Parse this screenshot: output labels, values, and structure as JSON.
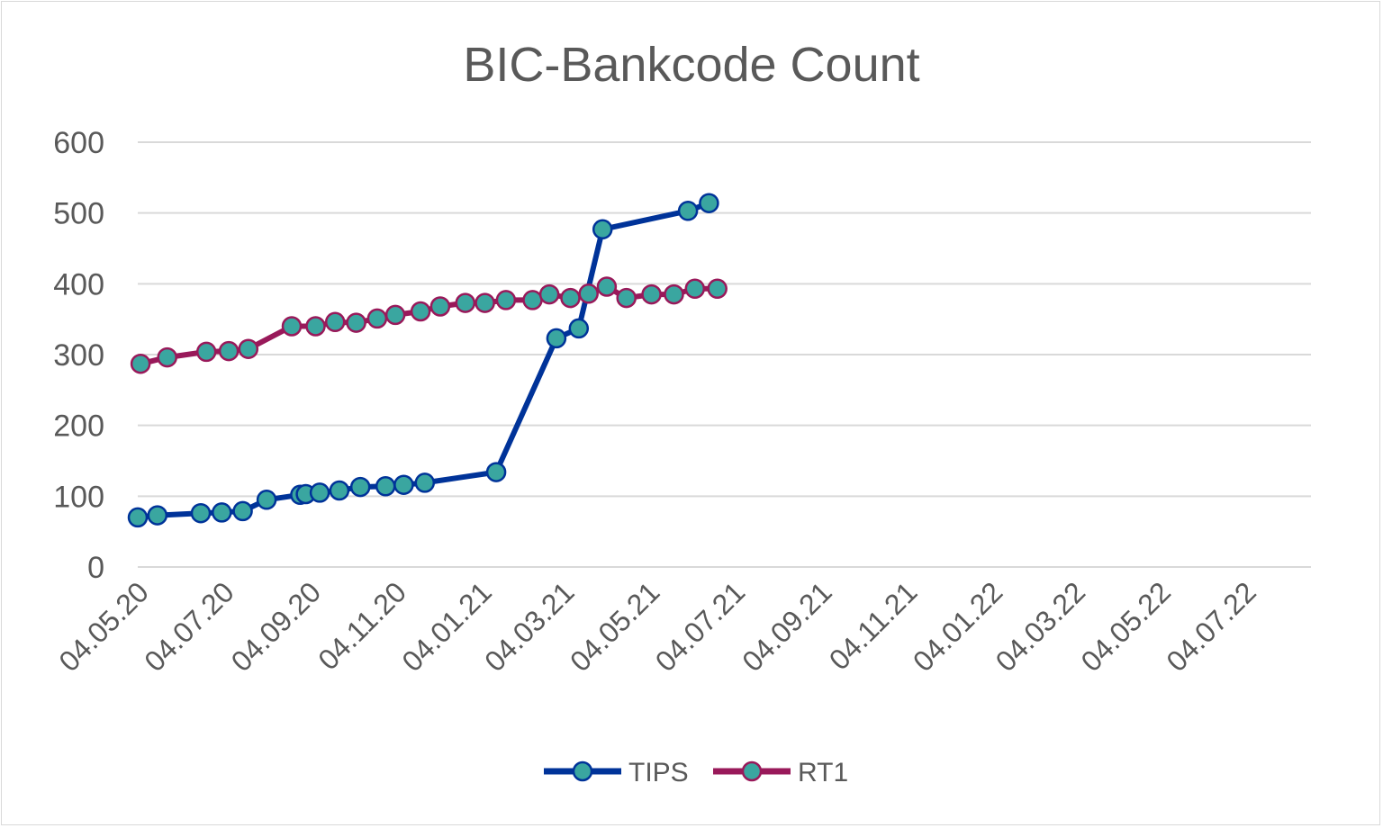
{
  "chart_data": {
    "type": "line",
    "title": "BIC-Bankcode Count",
    "xlabel": "",
    "ylabel": "",
    "ylim": [
      0,
      600
    ],
    "yticks": [
      0,
      100,
      200,
      300,
      400,
      500,
      600
    ],
    "xlim": [
      "2020-05-04",
      "2022-08-20"
    ],
    "xticks": [
      "04.05.20",
      "04.07.20",
      "04.09.20",
      "04.11.20",
      "04.01.21",
      "04.03.21",
      "04.05.21",
      "04.07.21",
      "04.09.21",
      "04.11.21",
      "04.01.22",
      "04.03.22",
      "04.05.22",
      "04.07.22"
    ],
    "xtick_dates": [
      "2020-05-04",
      "2020-07-04",
      "2020-09-04",
      "2020-11-04",
      "2021-01-04",
      "2021-03-04",
      "2021-05-04",
      "2021-07-04",
      "2021-09-04",
      "2021-11-04",
      "2022-01-04",
      "2022-03-04",
      "2022-05-04",
      "2022-07-04"
    ],
    "grid": true,
    "legend": "bottom",
    "colors": {
      "TIPS": "#003399",
      "RT1": "#99195a",
      "marker_fill": "#3aa6a0"
    },
    "series": [
      {
        "name": "TIPS",
        "points": [
          [
            "2020-05-04",
            70
          ],
          [
            "2020-05-18",
            73
          ],
          [
            "2020-06-18",
            76
          ],
          [
            "2020-07-03",
            77
          ],
          [
            "2020-07-18",
            79
          ],
          [
            "2020-08-04",
            95
          ],
          [
            "2020-08-28",
            102
          ],
          [
            "2020-09-01",
            103
          ],
          [
            "2020-09-11",
            105
          ],
          [
            "2020-09-25",
            108
          ],
          [
            "2020-10-10",
            113
          ],
          [
            "2020-10-28",
            114
          ],
          [
            "2020-11-10",
            116
          ],
          [
            "2020-11-25",
            119
          ],
          [
            "2021-01-15",
            134
          ],
          [
            "2021-02-27",
            323
          ],
          [
            "2021-03-15",
            337
          ],
          [
            "2021-04-01",
            477
          ],
          [
            "2021-06-01",
            503
          ],
          [
            "2021-06-16",
            514
          ]
        ]
      },
      {
        "name": "RT1",
        "points": [
          [
            "2020-05-06",
            287
          ],
          [
            "2020-05-25",
            296
          ],
          [
            "2020-06-22",
            304
          ],
          [
            "2020-07-08",
            305
          ],
          [
            "2020-07-22",
            308
          ],
          [
            "2020-08-22",
            340
          ],
          [
            "2020-09-08",
            340
          ],
          [
            "2020-09-22",
            346
          ],
          [
            "2020-10-07",
            345
          ],
          [
            "2020-10-22",
            351
          ],
          [
            "2020-11-04",
            356
          ],
          [
            "2020-11-22",
            361
          ],
          [
            "2020-12-06",
            368
          ],
          [
            "2020-12-24",
            373
          ],
          [
            "2021-01-07",
            373
          ],
          [
            "2021-01-22",
            377
          ],
          [
            "2021-02-10",
            377
          ],
          [
            "2021-02-22",
            385
          ],
          [
            "2021-03-09",
            380
          ],
          [
            "2021-03-22",
            386
          ],
          [
            "2021-04-04",
            396
          ],
          [
            "2021-04-18",
            380
          ],
          [
            "2021-05-06",
            385
          ],
          [
            "2021-05-22",
            385
          ],
          [
            "2021-06-06",
            393
          ],
          [
            "2021-06-22",
            393
          ]
        ]
      }
    ]
  }
}
